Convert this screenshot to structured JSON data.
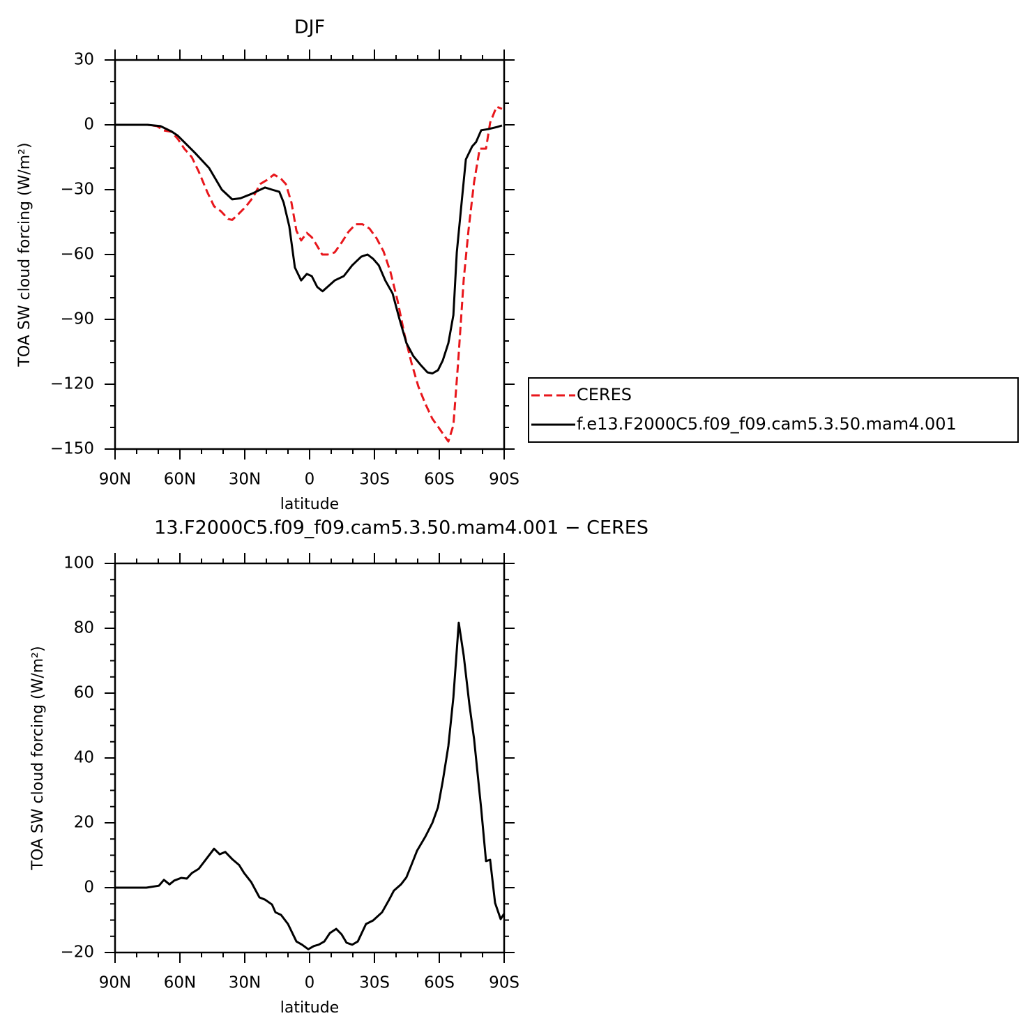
{
  "chart_data": [
    {
      "type": "line",
      "title": "DJF",
      "xlabel": "latitude",
      "ylabel": "TOA SW cloud forcing (W/m²)",
      "xlim": [
        90,
        -90
      ],
      "xticks": [
        {
          "value": 90,
          "label": "90N"
        },
        {
          "value": 60,
          "label": "60N"
        },
        {
          "value": 30,
          "label": "30N"
        },
        0,
        {
          "value": -30,
          "label": "30S"
        },
        {
          "value": -60,
          "label": "60S"
        },
        {
          "value": -90,
          "label": "90S"
        }
      ],
      "ylim": [
        -150,
        30
      ],
      "yticks": [
        30,
        0,
        {
          "value": -30,
          "label": "−30"
        },
        {
          "value": -60,
          "label": "−60"
        },
        {
          "value": -90,
          "label": "−90"
        },
        {
          "value": -120,
          "label": "−120"
        },
        {
          "value": -150,
          "label": "−150"
        }
      ],
      "legend": "right-outside",
      "series": [
        {
          "name": "CERES",
          "color": "#e8161b",
          "dash": true,
          "x": [
            90,
            75,
            70.6,
            67.4,
            64,
            61,
            58,
            54.5,
            51.3,
            47.4,
            44.2,
            41,
            37.7,
            35.8,
            32.6,
            29.4,
            26.1,
            22.9,
            19.7,
            16.5,
            13.2,
            11,
            8.4,
            6.1,
            3.9,
            1.3,
            -1,
            -2.9,
            -5.8,
            -8.4,
            -11.6,
            -14.8,
            -18,
            -21.3,
            -24.5,
            -27.7,
            -31,
            -34.2,
            -37.4,
            -40.6,
            -43.9,
            -47.1,
            -50.3,
            -53.5,
            -56.8,
            -60,
            -64.2,
            -66.5,
            -68.7,
            -71.3,
            -73.5,
            -76.1,
            -78.7,
            -81.6,
            -83.5,
            -86.5,
            -89
          ],
          "values": [
            0,
            0,
            -0.6,
            -2.6,
            -3.2,
            -6.5,
            -11,
            -15,
            -21.6,
            -31,
            -37.7,
            -40,
            -43.5,
            -44,
            -41,
            -37.7,
            -33.5,
            -27.4,
            -25.5,
            -23,
            -25,
            -27.4,
            -36,
            -49,
            -53.5,
            -50,
            -52,
            -55,
            -60,
            -60,
            -59,
            -54.5,
            -49.5,
            -46,
            -46,
            -48,
            -52.5,
            -58.5,
            -68,
            -81,
            -97,
            -110,
            -121,
            -129,
            -136,
            -140.5,
            -146.5,
            -139,
            -110,
            -71.6,
            -48.7,
            -26.5,
            -11,
            -11,
            1,
            8.4,
            7.4
          ]
        },
        {
          "name": "f.e13.F2000C5.f09_f09.cam5.3.50.mam4.001",
          "color": "#000000",
          "dash": false,
          "x": [
            90,
            75,
            69,
            64,
            61,
            58,
            53,
            46.5,
            40.6,
            35.8,
            32,
            27,
            20.6,
            17.4,
            14,
            12,
            9.4,
            6.8,
            3.9,
            1.3,
            -1,
            -3.5,
            -6,
            -11.6,
            -15.8,
            -19.7,
            -23.9,
            -26.8,
            -29.4,
            -32,
            -35,
            -38.4,
            -41.6,
            -44.8,
            -48,
            -51.3,
            -54.5,
            -56.8,
            -59.4,
            -61.6,
            -64.2,
            -66.5,
            -68.1,
            -70.6,
            -72.3,
            -75.2,
            -77,
            -79.4,
            -82.6,
            -86.8,
            -89
          ],
          "values": [
            0,
            0,
            -0.6,
            -3,
            -5,
            -8,
            -13,
            -20,
            -30,
            -34.5,
            -34,
            -32,
            -29,
            -30,
            -31,
            -36,
            -47,
            -66,
            -72,
            -69,
            -70,
            -75,
            -77,
            -72,
            -70,
            -65,
            -61,
            -60,
            -62,
            -65,
            -72,
            -78,
            -90,
            -101,
            -107,
            -111,
            -114.5,
            -115,
            -113.5,
            -109,
            -101,
            -88,
            -59,
            -33,
            -16,
            -10,
            -8,
            -2.5,
            -2,
            -1,
            -0.3
          ]
        }
      ]
    },
    {
      "type": "line",
      "title": "13.F2000C5.f09_f09.cam5.3.50.mam4.001 − CERES",
      "xlabel": "latitude",
      "ylabel": "TOA SW cloud forcing (W/m²)",
      "xlim": [
        90,
        -90
      ],
      "xticks": [
        {
          "value": 90,
          "label": "90N"
        },
        {
          "value": 60,
          "label": "60N"
        },
        {
          "value": 30,
          "label": "30N"
        },
        0,
        {
          "value": -30,
          "label": "30S"
        },
        {
          "value": -60,
          "label": "60S"
        },
        {
          "value": -90,
          "label": "90S"
        }
      ],
      "ylim": [
        -20,
        100
      ],
      "yticks": [
        100,
        80,
        60,
        40,
        20,
        0,
        {
          "value": -20,
          "label": "−20"
        }
      ],
      "series": [
        {
          "color": "#000000",
          "dash": false,
          "x": [
            90,
            75.5,
            69.7,
            67.4,
            64.8,
            62.6,
            59.4,
            56.8,
            54.5,
            51.3,
            47.4,
            44.2,
            41.6,
            39,
            35.8,
            32.6,
            30.3,
            27,
            23.2,
            20.6,
            17.4,
            15.8,
            13.2,
            10,
            6.1,
            3.5,
            0.6,
            -2,
            -4.2,
            -6.8,
            -9.4,
            -12.3,
            -14.8,
            -17.1,
            -19.7,
            -22.3,
            -26.1,
            -29.4,
            -33.5,
            -36.8,
            -39,
            -42.3,
            -44.8,
            -47.1,
            -49.7,
            -53.5,
            -56.8,
            -59.4,
            -61.6,
            -64.2,
            -66.5,
            -69,
            -71.3,
            -73.9,
            -76.1,
            -79.4,
            -81.6,
            -83.5,
            -85.8,
            -88.4,
            -90
          ],
          "values": [
            0,
            0,
            0.6,
            2.4,
            1,
            2.2,
            3,
            2.8,
            4.5,
            5.8,
            9.2,
            12,
            10.3,
            11,
            8.8,
            7,
            4.5,
            1.7,
            -3,
            -3.7,
            -5.2,
            -7.6,
            -8.4,
            -11.2,
            -16.6,
            -17.6,
            -19,
            -18,
            -17.6,
            -16.6,
            -14,
            -12.7,
            -14.4,
            -17,
            -17.6,
            -16.6,
            -11.2,
            -10.1,
            -7.6,
            -3.7,
            -0.9,
            1,
            3.2,
            7,
            11.4,
            15.7,
            20,
            24.8,
            32.9,
            43.7,
            58.7,
            81.7,
            71.6,
            56.6,
            45.8,
            24.3,
            8.2,
            8.6,
            -4.7,
            -9.7,
            -8
          ]
        }
      ]
    }
  ]
}
